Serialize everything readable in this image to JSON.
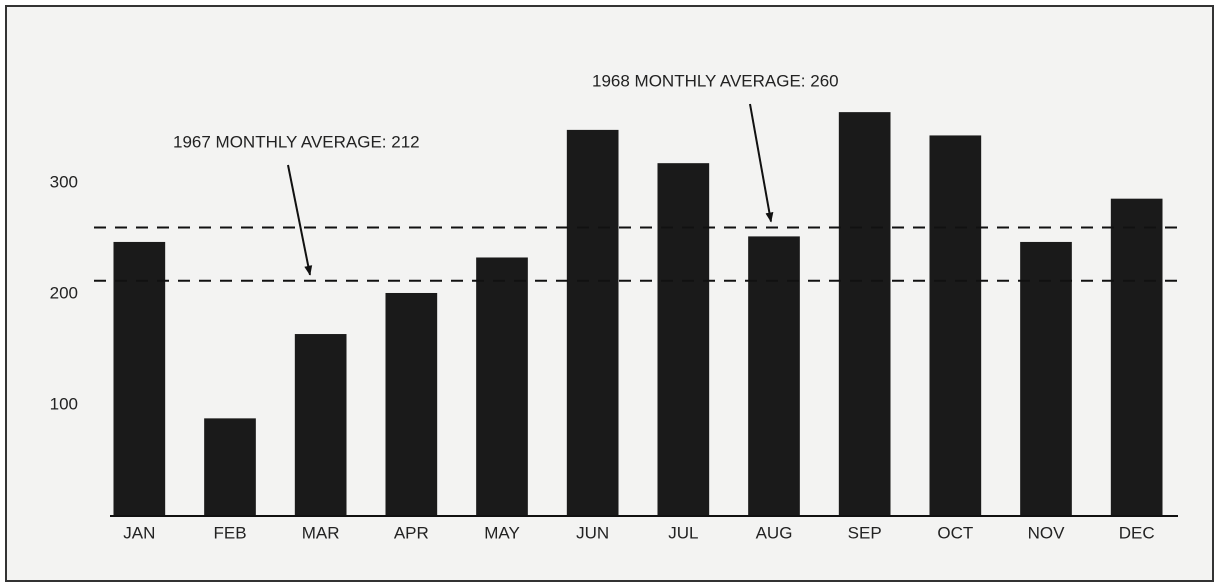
{
  "chart_data": {
    "type": "bar",
    "categories": [
      "JAN",
      "FEB",
      "MAR",
      "APR",
      "MAY",
      "JUN",
      "JUL",
      "AUG",
      "SEP",
      "OCT",
      "NOV",
      "DEC"
    ],
    "values": [
      247,
      88,
      164,
      201,
      233,
      348,
      318,
      252,
      364,
      343,
      247,
      286
    ],
    "color": "#1a1a1a",
    "ylim": [
      0,
      420
    ],
    "yticks": [
      100,
      200,
      300
    ],
    "grid": false,
    "annotations": [
      {
        "text": "1967 MONTHLY AVERAGE: 212",
        "value": 212
      },
      {
        "text": "1968 MONTHLY AVERAGE: 260",
        "value": 260
      }
    ]
  }
}
